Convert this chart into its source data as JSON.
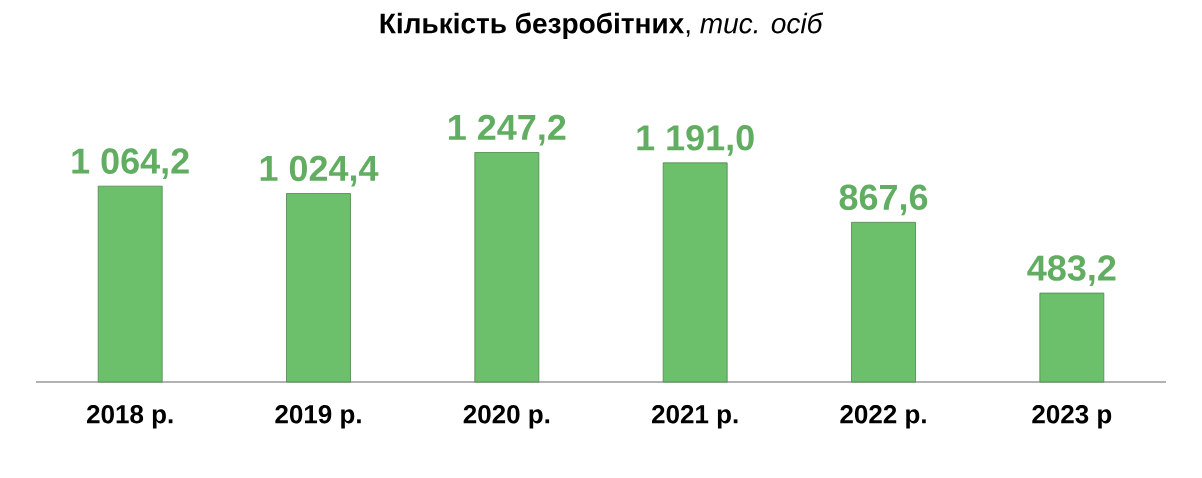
{
  "chart_data": {
    "type": "bar",
    "title": "**Кількість безробітних**, *тис. осіб*",
    "categories": [
      "2018 р.",
      "2019 р.",
      "2020 р.",
      "2021 р.",
      "2022 р.",
      "2023 р"
    ],
    "values": [
      1064.2,
      1024.4,
      1247.2,
      1191.0,
      867.6,
      483.2
    ],
    "value_labels": [
      "1 064,2",
      "1 024,4",
      "1 247,2",
      "1 191,0",
      "867,6",
      "483,2"
    ],
    "color": "#6cc06c"
  }
}
